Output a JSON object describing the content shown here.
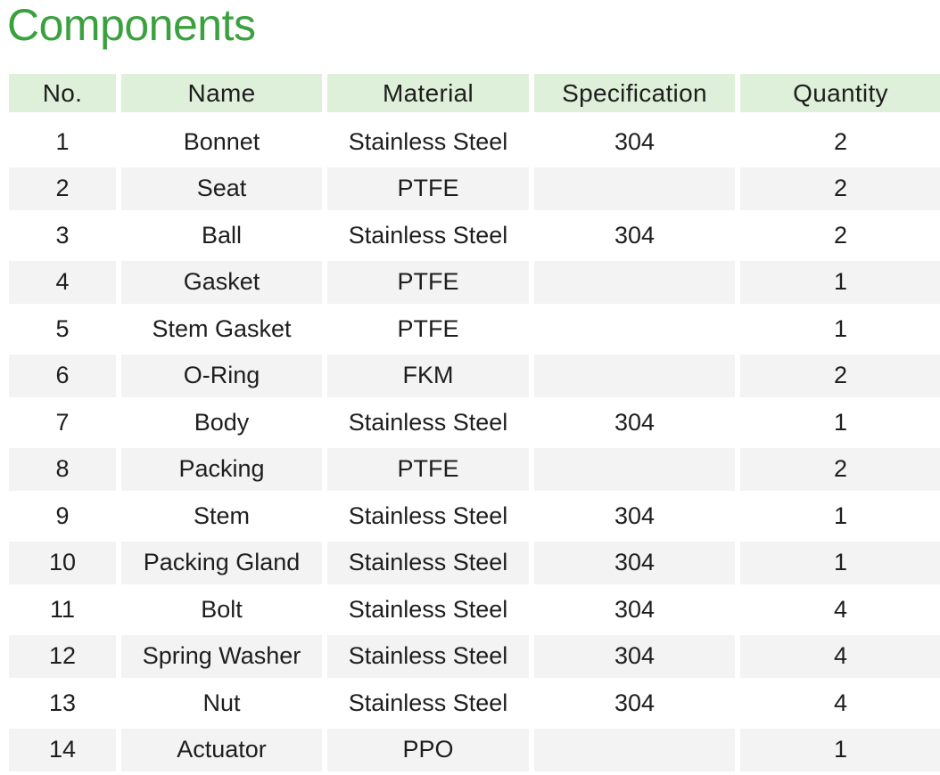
{
  "title": "Components",
  "table": {
    "headers": [
      "No.",
      "Name",
      "Material",
      "Specification",
      "Quantity"
    ],
    "rows": [
      {
        "no": "1",
        "name": "Bonnet",
        "material": "Stainless Steel",
        "spec": "304",
        "qty": "2"
      },
      {
        "no": "2",
        "name": "Seat",
        "material": "PTFE",
        "spec": "",
        "qty": "2"
      },
      {
        "no": "3",
        "name": "Ball",
        "material": "Stainless Steel",
        "spec": "304",
        "qty": "2"
      },
      {
        "no": "4",
        "name": "Gasket",
        "material": "PTFE",
        "spec": "",
        "qty": "1"
      },
      {
        "no": "5",
        "name": "Stem Gasket",
        "material": "PTFE",
        "spec": "",
        "qty": "1"
      },
      {
        "no": "6",
        "name": "O-Ring",
        "material": "FKM",
        "spec": "",
        "qty": "2"
      },
      {
        "no": "7",
        "name": "Body",
        "material": "Stainless Steel",
        "spec": "304",
        "qty": "1"
      },
      {
        "no": "8",
        "name": "Packing",
        "material": "PTFE",
        "spec": "",
        "qty": "2"
      },
      {
        "no": "9",
        "name": "Stem",
        "material": "Stainless Steel",
        "spec": "304",
        "qty": "1"
      },
      {
        "no": "10",
        "name": "Packing Gland",
        "material": "Stainless Steel",
        "spec": "304",
        "qty": "1"
      },
      {
        "no": "11",
        "name": "Bolt",
        "material": "Stainless Steel",
        "spec": "304",
        "qty": "4"
      },
      {
        "no": "12",
        "name": "Spring Washer",
        "material": "Stainless Steel",
        "spec": "304",
        "qty": "4"
      },
      {
        "no": "13",
        "name": "Nut",
        "material": "Stainless Steel",
        "spec": "304",
        "qty": "4"
      },
      {
        "no": "14",
        "name": "Actuator",
        "material": "PPO",
        "spec": "",
        "qty": "1"
      }
    ]
  },
  "colors": {
    "title": "#3aa13e",
    "header_bg": "#dff0da",
    "stripe_bg": "#f3f3f3"
  }
}
